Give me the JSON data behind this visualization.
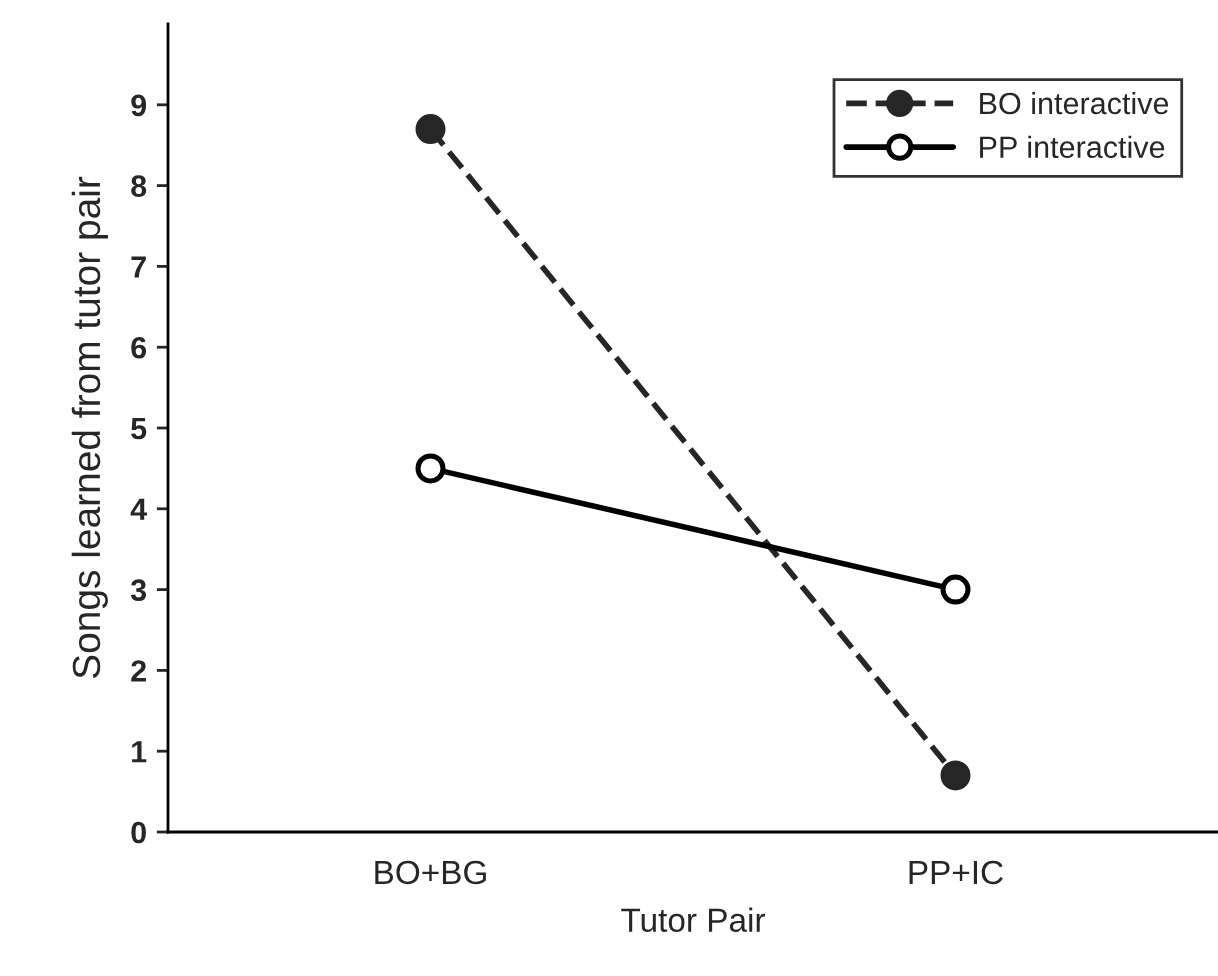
{
  "chart_data": {
    "type": "line",
    "xlabel": "Tutor Pair",
    "ylabel": "Songs learned from tutor pair",
    "categories": [
      "BO+BG",
      "PP+IC"
    ],
    "series": [
      {
        "name": "BO interactive",
        "color": "#262626",
        "values": [
          8.7,
          0.7
        ],
        "line_style": "dashed",
        "marker": "circle"
      },
      {
        "name": "PP interactive",
        "color": "#000000",
        "values": [
          4.5,
          3.0
        ],
        "line_style": "solid",
        "marker": "circle"
      }
    ],
    "ylim": [
      0,
      10
    ],
    "yticks": [
      0,
      1,
      2,
      3,
      4,
      5,
      6,
      7,
      8,
      9
    ],
    "grid": false,
    "legend": "top right"
  }
}
